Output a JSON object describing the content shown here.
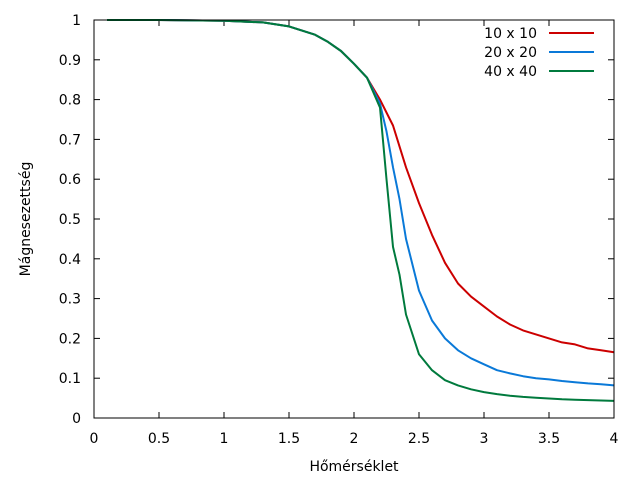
{
  "chart_data": {
    "type": "line",
    "title": "",
    "xlabel": "Hőmérséklet",
    "ylabel": "Mágnesezettség",
    "xlim": [
      0,
      4
    ],
    "ylim": [
      0,
      1
    ],
    "xticks": [
      0,
      0.5,
      1,
      1.5,
      2,
      2.5,
      3,
      3.5,
      4
    ],
    "xtick_labels": [
      "0",
      "0.5",
      "1",
      "1.5",
      "2",
      "2.5",
      "3",
      "3.5",
      "4"
    ],
    "yticks": [
      0,
      0.1,
      0.2,
      0.3,
      0.4,
      0.5,
      0.6,
      0.7,
      0.8,
      0.9,
      1
    ],
    "ytick_labels": [
      "0",
      "0.1",
      "0.2",
      "0.3",
      "0.4",
      "0.5",
      "0.6",
      "0.7",
      "0.8",
      "0.9",
      "1"
    ],
    "grid": false,
    "legend_position": "top-right",
    "series": [
      {
        "name": "10 x 10",
        "color": "#cc0000",
        "x": [
          0.1,
          0.5,
          1.0,
          1.3,
          1.5,
          1.7,
          1.8,
          1.9,
          2.0,
          2.1,
          2.2,
          2.3,
          2.4,
          2.5,
          2.6,
          2.7,
          2.8,
          2.9,
          3.0,
          3.1,
          3.2,
          3.3,
          3.4,
          3.5,
          3.6,
          3.7,
          3.8,
          3.9,
          4.0
        ],
        "y": [
          1.0,
          1.0,
          0.998,
          0.994,
          0.984,
          0.963,
          0.945,
          0.922,
          0.89,
          0.855,
          0.8,
          0.735,
          0.63,
          0.54,
          0.46,
          0.39,
          0.338,
          0.305,
          0.28,
          0.255,
          0.235,
          0.22,
          0.21,
          0.2,
          0.19,
          0.185,
          0.175,
          0.17,
          0.165
        ]
      },
      {
        "name": "20 x 20",
        "color": "#0a79d8",
        "x": [
          0.1,
          0.5,
          1.0,
          1.3,
          1.5,
          1.7,
          1.8,
          1.9,
          2.0,
          2.1,
          2.2,
          2.25,
          2.3,
          2.35,
          2.4,
          2.5,
          2.6,
          2.7,
          2.8,
          2.9,
          3.0,
          3.1,
          3.2,
          3.3,
          3.4,
          3.5,
          3.6,
          3.7,
          3.8,
          3.9,
          4.0
        ],
        "y": [
          1.0,
          1.0,
          0.998,
          0.994,
          0.984,
          0.963,
          0.945,
          0.922,
          0.89,
          0.855,
          0.79,
          0.72,
          0.63,
          0.55,
          0.45,
          0.32,
          0.245,
          0.2,
          0.17,
          0.15,
          0.135,
          0.12,
          0.112,
          0.105,
          0.1,
          0.097,
          0.093,
          0.09,
          0.087,
          0.085,
          0.082
        ]
      },
      {
        "name": "40 x 40",
        "color": "#007a3d",
        "x": [
          0.1,
          0.5,
          1.0,
          1.3,
          1.5,
          1.7,
          1.8,
          1.9,
          2.0,
          2.1,
          2.2,
          2.25,
          2.3,
          2.35,
          2.4,
          2.5,
          2.6,
          2.7,
          2.8,
          2.9,
          3.0,
          3.1,
          3.2,
          3.3,
          3.4,
          3.5,
          3.6,
          3.7,
          3.8,
          3.9,
          4.0
        ],
        "y": [
          1.0,
          1.0,
          0.998,
          0.994,
          0.984,
          0.963,
          0.945,
          0.922,
          0.89,
          0.855,
          0.78,
          0.6,
          0.43,
          0.36,
          0.26,
          0.16,
          0.12,
          0.095,
          0.082,
          0.072,
          0.065,
          0.06,
          0.056,
          0.053,
          0.051,
          0.049,
          0.047,
          0.046,
          0.045,
          0.044,
          0.043
        ]
      }
    ]
  }
}
